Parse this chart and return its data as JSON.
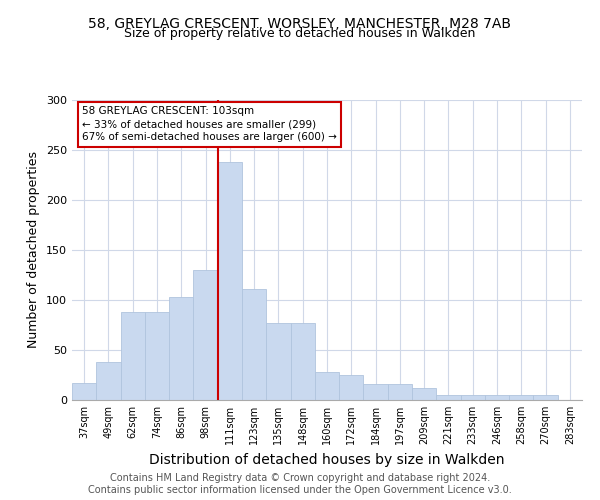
{
  "title1": "58, GREYLAG CRESCENT, WORSLEY, MANCHESTER, M28 7AB",
  "title2": "Size of property relative to detached houses in Walkden",
  "xlabel": "Distribution of detached houses by size in Walkden",
  "ylabel": "Number of detached properties",
  "footer": "Contains HM Land Registry data © Crown copyright and database right 2024.\nContains public sector information licensed under the Open Government Licence v3.0.",
  "categories": [
    "37sqm",
    "49sqm",
    "62sqm",
    "74sqm",
    "86sqm",
    "98sqm",
    "111sqm",
    "123sqm",
    "135sqm",
    "148sqm",
    "160sqm",
    "172sqm",
    "184sqm",
    "197sqm",
    "209sqm",
    "221sqm",
    "233sqm",
    "246sqm",
    "258sqm",
    "270sqm",
    "283sqm"
  ],
  "values": [
    17,
    38,
    88,
    88,
    103,
    130,
    238,
    111,
    77,
    77,
    28,
    25,
    16,
    16,
    12,
    5,
    5,
    5,
    5,
    5,
    0
  ],
  "bar_color": "#c9d9ef",
  "bar_edge_color": "#b0c4de",
  "vline_x_index": 6,
  "vline_color": "#cc0000",
  "annotation_text": "58 GREYLAG CRESCENT: 103sqm\n← 33% of detached houses are smaller (299)\n67% of semi-detached houses are larger (600) →",
  "annotation_box_color": "#ffffff",
  "annotation_box_edge_color": "#cc0000",
  "ylim": [
    0,
    300
  ],
  "background_color": "#ffffff",
  "plot_bg_color": "#ffffff",
  "grid_color": "#d0d8e8",
  "title1_fontsize": 10,
  "title2_fontsize": 9,
  "xlabel_fontsize": 10,
  "ylabel_fontsize": 9,
  "footer_fontsize": 7
}
